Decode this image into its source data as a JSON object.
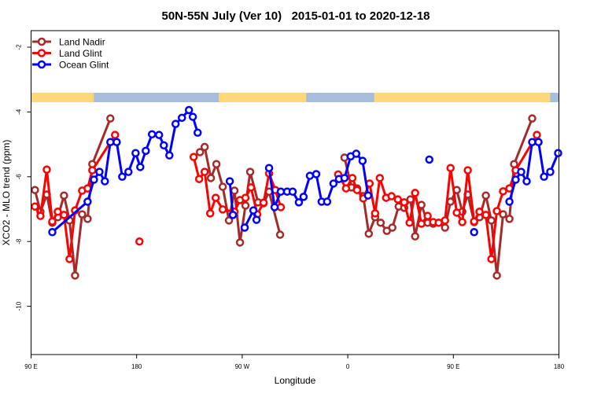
{
  "chart_data": {
    "type": "line",
    "title": "50N-55N July (Ver 10)   2015-01-01 to 2020-12-18",
    "xlabel": "Longitude",
    "ylabel": "XCO2 - MLO trend (ppm)",
    "xlim": [
      90,
      540
    ],
    "ylim": [
      -11.49,
      -1.49
    ],
    "x_note": "unwrapped longitude, 90E eastward through 180, 90W, 0, 90E, 180",
    "xticks": [
      90,
      180,
      270,
      360,
      450,
      540
    ],
    "xtick_labels": [
      "90 E",
      "180",
      "90 W",
      "0",
      "90 E",
      "180"
    ],
    "yticks": [
      -2,
      -4,
      -6,
      -8,
      -10
    ],
    "ytick_labels": [
      "-2",
      "-4",
      "-6",
      "-8",
      "-10"
    ],
    "grid": false,
    "legend_position": "top-left",
    "surface_strip": {
      "land_color": "#FDD87A",
      "ocean_color": "#A7BDDB",
      "land_ranges": [
        [
          90,
          142.5
        ],
        [
          142.5,
          143.5
        ],
        [
          250,
          324.5
        ],
        [
          382.5,
          532.5
        ],
        [
          515,
          517
        ]
      ]
    },
    "series": [
      {
        "name": "Land Nadir",
        "color": "#A52A2A",
        "segments": [
          [
            [
              93.3,
              -6.41
            ],
            [
              98.0,
              -7.08
            ],
            [
              103.4,
              -6.55
            ],
            [
              108.1,
              -7.42
            ],
            [
              112.8,
              -7.25
            ],
            [
              118.1,
              -6.58
            ],
            [
              122.8,
              -7.35
            ],
            [
              127.5,
              -9.05
            ],
            [
              133.5,
              -7.16
            ],
            [
              138.2,
              -7.3
            ],
            [
              142.2,
              -5.61
            ],
            [
              157.6,
              -4.2
            ]
          ],
          [
            [
              234.0,
              -5.24
            ],
            [
              238.0,
              -5.08
            ],
            [
              243.3,
              -6.04
            ],
            [
              248.0,
              -5.61
            ],
            [
              253.4,
              -6.31
            ],
            [
              258.7,
              -7.35
            ],
            [
              263.4,
              -6.43
            ],
            [
              268.1,
              -8.03
            ],
            [
              272.8,
              -6.89
            ],
            [
              276.8,
              -5.85
            ],
            [
              283.5,
              -6.79
            ],
            [
              288.2,
              -6.82
            ],
            [
              292.9,
              -6.46
            ],
            [
              302.3,
              -7.79
            ]
          ],
          [
            [
              357.2,
              -5.41
            ],
            [
              363.2,
              -6.33
            ],
            [
              367.9,
              -6.36
            ],
            [
              373.2,
              -6.6
            ],
            [
              377.9,
              -7.76
            ],
            [
              383.3,
              -7.25
            ],
            [
              388.0,
              -7.42
            ],
            [
              393.3,
              -7.67
            ],
            [
              398.0,
              -7.57
            ],
            [
              403.4,
              -6.92
            ],
            [
              408.1,
              -6.96
            ],
            [
              413.4,
              -6.7
            ],
            [
              417.4,
              -7.84
            ],
            [
              422.8,
              -6.87
            ],
            [
              428.1,
              -7.42
            ],
            [
              432.8,
              -7.45
            ],
            [
              437.5,
              -7.42
            ],
            [
              442.9,
              -7.57
            ],
            [
              447.6,
              -6.77
            ],
            [
              452.9,
              -6.41
            ],
            [
              457.6,
              -7.08
            ],
            [
              462.3,
              -6.55
            ],
            [
              467.7,
              -7.4
            ],
            [
              472.3,
              -7.25
            ],
            [
              477.7,
              -6.58
            ],
            [
              482.4,
              -7.35
            ],
            [
              487.1,
              -9.05
            ],
            [
              492.4,
              -7.16
            ],
            [
              497.8,
              -7.3
            ],
            [
              501.8,
              -5.61
            ],
            [
              517.2,
              -4.2
            ]
          ]
        ]
      },
      {
        "name": "Land Glint",
        "color": "#FF0000",
        "segments": [
          [
            [
              93.3,
              -6.92
            ],
            [
              98.0,
              -7.21
            ],
            [
              103.4,
              -5.78
            ],
            [
              108.1,
              -7.38
            ],
            [
              112.8,
              -7.08
            ],
            [
              118.1,
              -7.18
            ],
            [
              122.8,
              -8.54
            ],
            [
              127.5,
              -7.04
            ],
            [
              133.5,
              -6.43
            ],
            [
              138.2,
              -6.36
            ],
            [
              142.2,
              -5.8
            ],
            [
              161.6,
              -4.71
            ]
          ],
          [
            [
              182.4,
              -8.0
            ]
          ],
          [
            [
              228.6,
              -5.39
            ],
            [
              233.3,
              -6.07
            ],
            [
              238.0,
              -5.85
            ],
            [
              242.7,
              -7.13
            ],
            [
              247.4,
              -6.65
            ],
            [
              253.4,
              -7.01
            ],
            [
              263.4,
              -7.08
            ],
            [
              268.1,
              -6.72
            ],
            [
              272.8,
              -6.65
            ],
            [
              277.5,
              -6.33
            ],
            [
              282.8,
              -7.16
            ],
            [
              288.2,
              -6.8
            ],
            [
              292.9,
              -5.9
            ],
            [
              298.2,
              -6.41
            ],
            [
              302.9,
              -6.94
            ]
          ],
          [
            [
              351.8,
              -5.93
            ],
            [
              358.5,
              -6.36
            ],
            [
              363.9,
              -6.04
            ],
            [
              367.9,
              -6.41
            ],
            [
              373.2,
              -6.67
            ],
            [
              378.6,
              -6.21
            ],
            [
              383.3,
              -7.13
            ],
            [
              387.3,
              -6.04
            ],
            [
              392.7,
              -6.65
            ],
            [
              397.3,
              -6.6
            ],
            [
              402.7,
              -6.7
            ],
            [
              408.1,
              -6.79
            ],
            [
              412.7,
              -7.42
            ],
            [
              417.4,
              -6.5
            ],
            [
              422.8,
              -7.45
            ],
            [
              428.1,
              -7.21
            ],
            [
              432.8,
              -7.4
            ],
            [
              437.5,
              -7.42
            ],
            [
              442.9,
              -7.35
            ],
            [
              447.6,
              -5.73
            ],
            [
              452.9,
              -7.11
            ],
            [
              457.6,
              -7.4
            ],
            [
              462.3,
              -5.8
            ],
            [
              467.7,
              -7.38
            ],
            [
              472.3,
              -7.08
            ],
            [
              477.7,
              -7.18
            ],
            [
              482.4,
              -8.54
            ],
            [
              487.1,
              -7.06
            ],
            [
              492.4,
              -6.45
            ],
            [
              497.8,
              -6.36
            ],
            [
              503.1,
              -5.8
            ],
            [
              521.2,
              -4.71
            ]
          ]
        ]
      },
      {
        "name": "Ocean Glint",
        "color": "#0000FF",
        "segments": [
          [
            [
              108.1,
              -7.71
            ],
            [
              138.2,
              -6.77
            ],
            [
              143.6,
              -6.09
            ],
            [
              148.3,
              -5.85
            ],
            [
              152.9,
              -6.14
            ],
            [
              157.6,
              -4.93
            ],
            [
              163.0,
              -4.93
            ],
            [
              167.7,
              -6.0
            ],
            [
              173.0,
              -5.85
            ],
            [
              179.1,
              -5.27
            ],
            [
              183.1,
              -5.7
            ],
            [
              187.8,
              -5.2
            ],
            [
              193.1,
              -4.69
            ],
            [
              199.1,
              -4.71
            ],
            [
              203.2,
              -5.03
            ],
            [
              207.9,
              -5.34
            ],
            [
              213.2,
              -4.37
            ],
            [
              218.6,
              -4.18
            ],
            [
              224.6,
              -3.94
            ],
            [
              227.9,
              -4.15
            ],
            [
              232.0,
              -4.64
            ]
          ],
          [
            [
              259.4,
              -6.14
            ],
            [
              262.1,
              -7.18
            ]
          ],
          [
            [
              272.1,
              -7.57
            ],
            [
              279.5,
              -7.04
            ],
            [
              282.2,
              -7.33
            ]
          ],
          [
            [
              292.9,
              -5.73
            ],
            [
              297.6,
              -6.94
            ],
            [
              302.9,
              -6.46
            ],
            [
              308.3,
              -6.46
            ],
            [
              313.0,
              -6.46
            ],
            [
              318.3,
              -6.79
            ],
            [
              322.3,
              -6.62
            ],
            [
              327.7,
              -5.97
            ],
            [
              333.1,
              -5.92
            ],
            [
              337.7,
              -6.77
            ],
            [
              342.4,
              -6.77
            ],
            [
              347.8,
              -6.21
            ],
            [
              352.5,
              -6.07
            ],
            [
              357.2,
              -6.04
            ],
            [
              362.5,
              -5.37
            ],
            [
              367.2,
              -5.29
            ],
            [
              372.6,
              -5.51
            ],
            [
              377.3,
              -6.58
            ]
          ],
          [
            [
              429.5,
              -5.47
            ]
          ],
          [
            [
              467.7,
              -7.71
            ]
          ],
          [
            [
              497.8,
              -6.77
            ],
            [
              503.1,
              -6.09
            ],
            [
              507.8,
              -5.85
            ],
            [
              512.5,
              -6.14
            ],
            [
              517.2,
              -4.93
            ],
            [
              522.6,
              -4.93
            ],
            [
              527.3,
              -6.0
            ],
            [
              532.6,
              -5.85
            ],
            [
              539.3,
              -5.27
            ]
          ]
        ]
      }
    ]
  }
}
